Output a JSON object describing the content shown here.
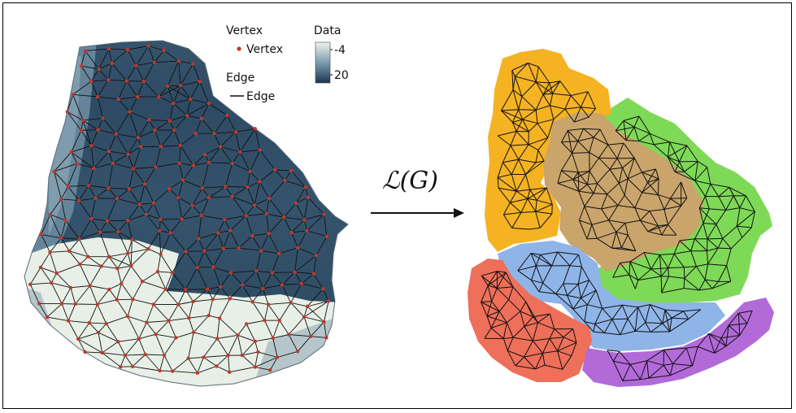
{
  "legend": {
    "vertex_title": "Vertex",
    "vertex_item": "Vertex",
    "edge_title": "Edge",
    "edge_item": "Edge",
    "data_title": "Data",
    "data_max_label": "-4",
    "data_min_label": "20",
    "vertex_color": "#c0392b",
    "gradient_light": "#eef4ee",
    "gradient_dark": "#1c3550"
  },
  "operator": {
    "label": "ℒ(G)"
  },
  "region_colors": {
    "orange": "#f5b323",
    "tan": "#c9a46b",
    "green": "#7ed957",
    "blue": "#8fb4e8",
    "red": "#ee6f5a",
    "purple": "#b26ad9"
  }
}
